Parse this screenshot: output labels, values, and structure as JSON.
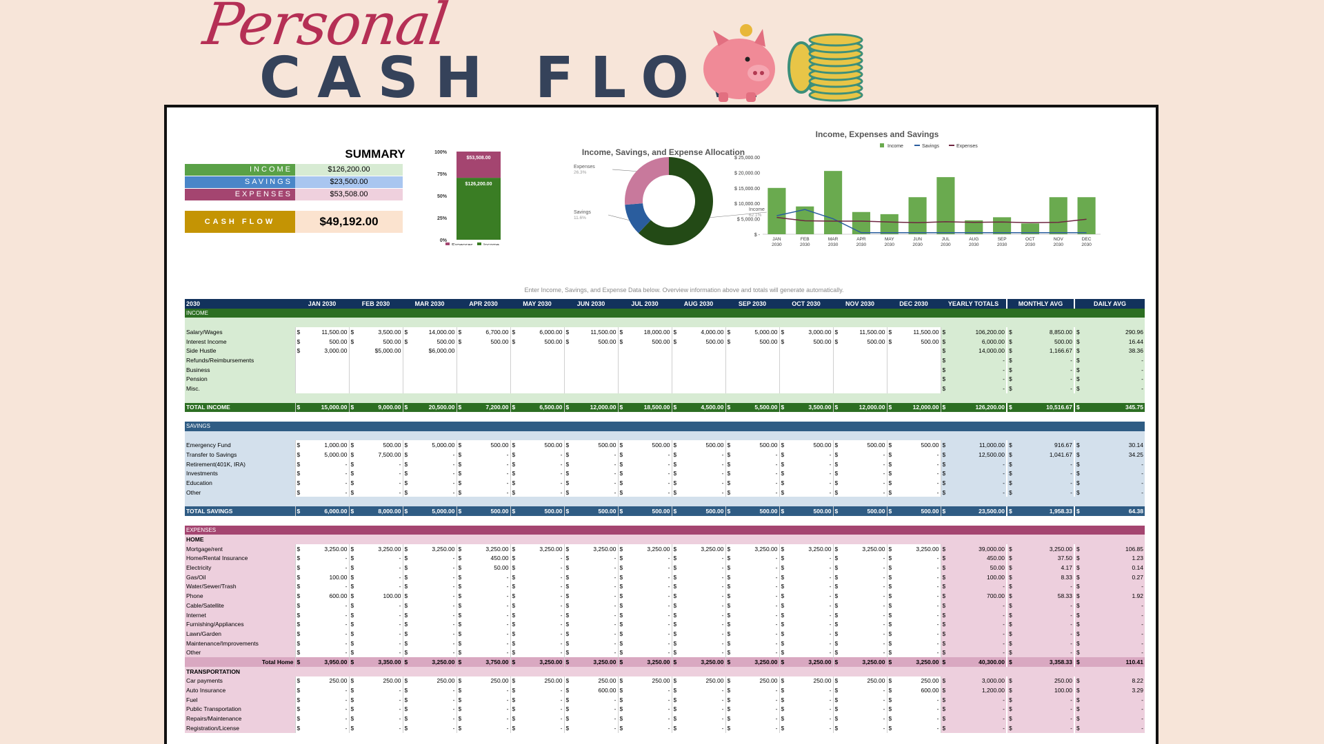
{
  "header": {
    "personal": "Personal",
    "cash_flow": "CASH FLOW"
  },
  "icons": {
    "pig": "piggy-bank-icon",
    "coins": "coin-stack-icon"
  },
  "summary": {
    "title": "SUMMARY",
    "income_label": "INCOME",
    "income_value": "$126,200.00",
    "savings_label": "SAVINGS",
    "savings_value": "$23,500.00",
    "expenses_label": "EXPENSES",
    "expenses_value": "$53,508.00",
    "cashflow_label": "CASH FLOW",
    "cashflow_value": "$49,192.00"
  },
  "colors": {
    "income": "#5aa147",
    "savings": "#4a86c8",
    "expenses": "#a44570",
    "cashflow": "#c49404",
    "header": "#12325c"
  },
  "chart_data": [
    {
      "type": "bar",
      "stacked": true,
      "percent": true,
      "categories": [
        ""
      ],
      "series": [
        {
          "name": "Income",
          "values": [
            126200
          ],
          "label": "$126,200.00"
        },
        {
          "name": "Expenses",
          "values": [
            53508
          ],
          "label": "$53,508.00"
        }
      ],
      "ytick_labels": [
        "100%",
        "75%",
        "50%",
        "25%",
        "0%"
      ],
      "legend": "bottom"
    },
    {
      "type": "pie",
      "title": "Income, Savings, and Expense Allocation",
      "slices": [
        {
          "name": "Income",
          "value": 62.1,
          "label": "62.1%"
        },
        {
          "name": "Savings",
          "value": 11.6,
          "label": "11.6%"
        },
        {
          "name": "Expenses",
          "value": 26.3,
          "label": "26.3%"
        }
      ]
    },
    {
      "type": "bar",
      "title": "Income, Expenses and Savings",
      "categories": [
        "JAN 2030",
        "FEB 2030",
        "MAR 2030",
        "APR 2030",
        "MAY 2030",
        "JUN 2030",
        "JUL 2030",
        "AUG 2030",
        "SEP 2030",
        "OCT 2030",
        "NOV 2030",
        "DEC 2030"
      ],
      "series": [
        {
          "name": "Income",
          "type": "bar",
          "values": [
            15000,
            9000,
            20500,
            7200,
            6500,
            12000,
            18500,
            4500,
            5500,
            3500,
            12000,
            12000
          ]
        },
        {
          "name": "Savings",
          "type": "line",
          "values": [
            6000,
            8000,
            5000,
            500,
            500,
            500,
            500,
            500,
            500,
            500,
            500,
            500
          ]
        },
        {
          "name": "Expenses",
          "type": "line",
          "values": [
            5450,
            4350,
            4250,
            4250,
            3950,
            3750,
            4050,
            3850,
            3950,
            3750,
            3850,
            4850
          ]
        }
      ],
      "ytick_labels": [
        "$ 25,000.00",
        "$ 20,000.00",
        "$ 15,000.00",
        "$ 10,000.00",
        "$ 5,000.00",
        "$ -"
      ],
      "ylim": [
        0,
        25000
      ],
      "legend": "top"
    }
  ],
  "note": "Enter Income, Savings, and Expense Data below. Overview information above and totals will generate automatically.",
  "table": {
    "year": "2030",
    "months": [
      "JAN 2030",
      "FEB 2030",
      "MAR 2030",
      "APR 2030",
      "MAY 2030",
      "JUN 2030",
      "JUL 2030",
      "AUG 2030",
      "SEP 2030",
      "OCT 2030",
      "NOV 2030",
      "DEC 2030"
    ],
    "col_yearly": "YEARLY TOTALS",
    "col_monthly": "MONTHLY AVG",
    "col_daily": "DAILY AVG",
    "income_section": "INCOME",
    "income_rows": [
      {
        "label": "Salary/Wages",
        "m": [
          "11,500.00",
          "3,500.00",
          "14,000.00",
          "6,700.00",
          "6,000.00",
          "11,500.00",
          "18,000.00",
          "4,000.00",
          "5,000.00",
          "3,000.00",
          "11,500.00",
          "11,500.00"
        ],
        "y": "106,200.00",
        "ma": "8,850.00",
        "d": "290.96"
      },
      {
        "label": "Interest Income",
        "m": [
          "500.00",
          "500.00",
          "500.00",
          "500.00",
          "500.00",
          "500.00",
          "500.00",
          "500.00",
          "500.00",
          "500.00",
          "500.00",
          "500.00"
        ],
        "y": "6,000.00",
        "ma": "500.00",
        "d": "16.44"
      },
      {
        "label": "Side Hustle",
        "m": [
          "3,000.00",
          "$5,000.00",
          "$6,000.00",
          "",
          "",
          "",
          "",
          "",
          "",
          "",
          "",
          ""
        ],
        "y": "14,000.00",
        "ma": "1,166.67",
        "d": "38.36"
      },
      {
        "label": "Refunds/Reimbursements",
        "m": [
          "",
          "",
          "",
          "",
          "",
          "",
          "",
          "",
          "",
          "",
          "",
          ""
        ],
        "y": "-",
        "ma": "-",
        "d": "-"
      },
      {
        "label": "Business",
        "m": [
          "",
          "",
          "",
          "",
          "",
          "",
          "",
          "",
          "",
          "",
          "",
          ""
        ],
        "y": "-",
        "ma": "-",
        "d": "-"
      },
      {
        "label": "Pension",
        "m": [
          "",
          "",
          "",
          "",
          "",
          "",
          "",
          "",
          "",
          "",
          "",
          ""
        ],
        "y": "-",
        "ma": "-",
        "d": "-"
      },
      {
        "label": "Misc.",
        "m": [
          "",
          "",
          "",
          "",
          "",
          "",
          "",
          "",
          "",
          "",
          "",
          ""
        ],
        "y": "-",
        "ma": "-",
        "d": "-"
      }
    ],
    "income_total": {
      "label": "TOTAL INCOME",
      "m": [
        "15,000.00",
        "9,000.00",
        "20,500.00",
        "7,200.00",
        "6,500.00",
        "12,000.00",
        "18,500.00",
        "4,500.00",
        "5,500.00",
        "3,500.00",
        "12,000.00",
        "12,000.00"
      ],
      "y": "126,200.00",
      "ma": "10,516.67",
      "d": "345.75"
    },
    "savings_section": "SAVINGS",
    "savings_rows": [
      {
        "label": "Emergency Fund",
        "m": [
          "1,000.00",
          "500.00",
          "5,000.00",
          "500.00",
          "500.00",
          "500.00",
          "500.00",
          "500.00",
          "500.00",
          "500.00",
          "500.00",
          "500.00"
        ],
        "y": "11,000.00",
        "ma": "916.67",
        "d": "30.14"
      },
      {
        "label": "Transfer to Savings",
        "m": [
          "5,000.00",
          "7,500.00",
          "-",
          "-",
          "-",
          "-",
          "-",
          "-",
          "-",
          "-",
          "-",
          "-"
        ],
        "y": "12,500.00",
        "ma": "1,041.67",
        "d": "34.25"
      },
      {
        "label": "Retirement(401K, IRA)",
        "m": [
          "-",
          "-",
          "-",
          "-",
          "-",
          "-",
          "-",
          "-",
          "-",
          "-",
          "-",
          "-"
        ],
        "y": "-",
        "ma": "-",
        "d": "-"
      },
      {
        "label": "Investments",
        "m": [
          "-",
          "-",
          "-",
          "-",
          "-",
          "-",
          "-",
          "-",
          "-",
          "-",
          "-",
          "-"
        ],
        "y": "-",
        "ma": "-",
        "d": "-"
      },
      {
        "label": "Education",
        "m": [
          "-",
          "-",
          "-",
          "-",
          "-",
          "-",
          "-",
          "-",
          "-",
          "-",
          "-",
          "-"
        ],
        "y": "-",
        "ma": "-",
        "d": "-"
      },
      {
        "label": "Other",
        "m": [
          "-",
          "-",
          "-",
          "-",
          "-",
          "-",
          "-",
          "-",
          "-",
          "-",
          "-",
          "-"
        ],
        "y": "-",
        "ma": "-",
        "d": "-"
      }
    ],
    "savings_total": {
      "label": "TOTAL SAVINGS",
      "m": [
        "6,000.00",
        "8,000.00",
        "5,000.00",
        "500.00",
        "500.00",
        "500.00",
        "500.00",
        "500.00",
        "500.00",
        "500.00",
        "500.00",
        "500.00"
      ],
      "y": "23,500.00",
      "ma": "1,958.33",
      "d": "64.38"
    },
    "expenses_section": "EXPENSES",
    "home_group": "HOME",
    "home_rows": [
      {
        "label": "Mortgage/rent",
        "m": [
          "3,250.00",
          "3,250.00",
          "3,250.00",
          "3,250.00",
          "3,250.00",
          "3,250.00",
          "3,250.00",
          "3,250.00",
          "3,250.00",
          "3,250.00",
          "3,250.00",
          "3,250.00"
        ],
        "y": "39,000.00",
        "ma": "3,250.00",
        "d": "106.85"
      },
      {
        "label": "Home/Rental Insurance",
        "m": [
          "-",
          "-",
          "-",
          "450.00",
          "-",
          "-",
          "-",
          "-",
          "-",
          "-",
          "-",
          "-"
        ],
        "y": "450.00",
        "ma": "37.50",
        "d": "1.23"
      },
      {
        "label": "Electricity",
        "m": [
          "-",
          "-",
          "-",
          "50.00",
          "-",
          "-",
          "-",
          "-",
          "-",
          "-",
          "-",
          "-"
        ],
        "y": "50.00",
        "ma": "4.17",
        "d": "0.14"
      },
      {
        "label": "Gas/Oil",
        "m": [
          "100.00",
          "-",
          "-",
          "-",
          "-",
          "-",
          "-",
          "-",
          "-",
          "-",
          "-",
          "-"
        ],
        "y": "100.00",
        "ma": "8.33",
        "d": "0.27"
      },
      {
        "label": "Water/Sewer/Trash",
        "m": [
          "-",
          "-",
          "-",
          "-",
          "-",
          "-",
          "-",
          "-",
          "-",
          "-",
          "-",
          "-"
        ],
        "y": "-",
        "ma": "-",
        "d": "-"
      },
      {
        "label": "Phone",
        "m": [
          "600.00",
          "100.00",
          "-",
          "-",
          "-",
          "-",
          "-",
          "-",
          "-",
          "-",
          "-",
          "-"
        ],
        "y": "700.00",
        "ma": "58.33",
        "d": "1.92"
      },
      {
        "label": "Cable/Satellite",
        "m": [
          "-",
          "-",
          "-",
          "-",
          "-",
          "-",
          "-",
          "-",
          "-",
          "-",
          "-",
          "-"
        ],
        "y": "-",
        "ma": "-",
        "d": "-"
      },
      {
        "label": "Internet",
        "m": [
          "-",
          "-",
          "-",
          "-",
          "-",
          "-",
          "-",
          "-",
          "-",
          "-",
          "-",
          "-"
        ],
        "y": "-",
        "ma": "-",
        "d": "-"
      },
      {
        "label": "Furnishing/Appliances",
        "m": [
          "-",
          "-",
          "-",
          "-",
          "-",
          "-",
          "-",
          "-",
          "-",
          "-",
          "-",
          "-"
        ],
        "y": "-",
        "ma": "-",
        "d": "-"
      },
      {
        "label": "Lawn/Garden",
        "m": [
          "-",
          "-",
          "-",
          "-",
          "-",
          "-",
          "-",
          "-",
          "-",
          "-",
          "-",
          "-"
        ],
        "y": "-",
        "ma": "-",
        "d": "-"
      },
      {
        "label": "Maintenance/Improvements",
        "m": [
          "-",
          "-",
          "-",
          "-",
          "-",
          "-",
          "-",
          "-",
          "-",
          "-",
          "-",
          "-"
        ],
        "y": "-",
        "ma": "-",
        "d": "-"
      },
      {
        "label": "Other",
        "m": [
          "-",
          "-",
          "-",
          "-",
          "-",
          "-",
          "-",
          "-",
          "-",
          "-",
          "-",
          "-"
        ],
        "y": "-",
        "ma": "-",
        "d": "-"
      }
    ],
    "home_total": {
      "label": "Total Home",
      "m": [
        "3,950.00",
        "3,350.00",
        "3,250.00",
        "3,750.00",
        "3,250.00",
        "3,250.00",
        "3,250.00",
        "3,250.00",
        "3,250.00",
        "3,250.00",
        "3,250.00",
        "3,250.00"
      ],
      "y": "40,300.00",
      "ma": "3,358.33",
      "d": "110.41"
    },
    "transport_group": "TRANSPORTATION",
    "transport_rows": [
      {
        "label": "Car payments",
        "m": [
          "250.00",
          "250.00",
          "250.00",
          "250.00",
          "250.00",
          "250.00",
          "250.00",
          "250.00",
          "250.00",
          "250.00",
          "250.00",
          "250.00"
        ],
        "y": "3,000.00",
        "ma": "250.00",
        "d": "8.22"
      },
      {
        "label": "Auto Insurance",
        "m": [
          "-",
          "-",
          "-",
          "-",
          "-",
          "600.00",
          "-",
          "-",
          "-",
          "-",
          "-",
          "600.00"
        ],
        "y": "1,200.00",
        "ma": "100.00",
        "d": "3.29"
      },
      {
        "label": "Fuel",
        "m": [
          "-",
          "-",
          "-",
          "-",
          "-",
          "-",
          "-",
          "-",
          "-",
          "-",
          "-",
          "-"
        ],
        "y": "-",
        "ma": "-",
        "d": "-"
      },
      {
        "label": "Public Transportation",
        "m": [
          "-",
          "-",
          "-",
          "-",
          "-",
          "-",
          "-",
          "-",
          "-",
          "-",
          "-",
          "-"
        ],
        "y": "-",
        "ma": "-",
        "d": "-"
      },
      {
        "label": "Repairs/Maintenance",
        "m": [
          "-",
          "-",
          "-",
          "-",
          "-",
          "-",
          "-",
          "-",
          "-",
          "-",
          "-",
          "-"
        ],
        "y": "-",
        "ma": "-",
        "d": "-"
      },
      {
        "label": "Registration/License",
        "m": [
          "-",
          "-",
          "-",
          "-",
          "-",
          "-",
          "-",
          "-",
          "-",
          "-",
          "-",
          "-"
        ],
        "y": "-",
        "ma": "-",
        "d": "-"
      }
    ]
  }
}
